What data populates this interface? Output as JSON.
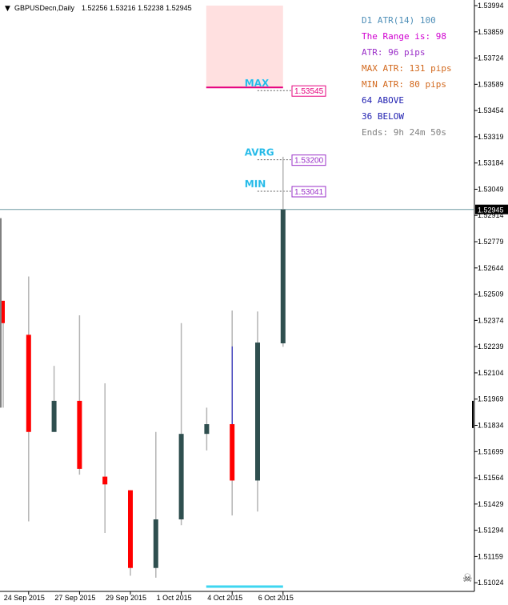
{
  "header": {
    "arrow": "▼",
    "symbol": "GBPUSDecn,Daily",
    "ohlc": "1.52256 1.53216 1.52238 1.52945"
  },
  "info_panel": [
    {
      "text": "D1 ATR(14) 100",
      "color": "#4f8fb8"
    },
    {
      "text": "The Range is: 98",
      "color": "#d000d0"
    },
    {
      "text": "ATR: 96 pips",
      "color": "#9a2fc8"
    },
    {
      "text": "MAX ATR: 131 pips",
      "color": "#d2691e"
    },
    {
      "text": "MIN ATR: 80 pips",
      "color": "#d2691e"
    },
    {
      "text": "64 ABOVE",
      "color": "#1f1fb0"
    },
    {
      "text": "36 BELOW",
      "color": "#1f1fb0"
    },
    {
      "text": "Ends: 9h 24m 50s",
      "color": "#808080"
    }
  ],
  "levels": [
    {
      "name": "MAX",
      "price": 1.53573,
      "label_box": "1.53545",
      "color": "#e6007e",
      "text_color": "#22b8e6",
      "line_color": "#e6007e"
    },
    {
      "name": "AVRG",
      "price": 1.53217,
      "label_box": "1.53200",
      "color": "#9a2fc8",
      "text_color": "#22b8e6",
      "line_color": "#606060"
    },
    {
      "name": "MIN",
      "price": 1.53055,
      "label_box": "1.53041",
      "color": "#9a2fc8",
      "text_color": "#22b8e6",
      "line_color": "#606060"
    }
  ],
  "current_price": {
    "label": "1.52945",
    "value": 1.52945,
    "color": "#6e9aa2"
  },
  "skull_icon": "☠",
  "chart_data": {
    "type": "candlestick",
    "y_range": [
      1.51,
      1.53994
    ],
    "price_axis_ticks": [
      "1.53994",
      "1.53859",
      "1.53724",
      "1.53589",
      "1.53454",
      "1.53319",
      "1.53184",
      "1.53049",
      "1.52914",
      "1.52779",
      "1.52644",
      "1.52509",
      "1.52374",
      "1.52239",
      "1.52104",
      "1.51969",
      "1.51834",
      "1.51699",
      "1.51564",
      "1.51429",
      "1.51294",
      "1.51159",
      "1.51024"
    ],
    "time_axis_labels": [
      "24 Sep 2015",
      "27 Sep 2015",
      "29 Sep 2015",
      "1 Oct 2015",
      "4 Oct 2015",
      "6 Oct 2015"
    ],
    "bull_color": "#2f4f4f",
    "bear_color": "#ff0000",
    "wick_color": "#b4b4b4",
    "candles": [
      {
        "open": 1.52475,
        "high": 1.52475,
        "low": 1.51925,
        "close": 1.5236
      },
      {
        "open": 1.523,
        "high": 1.526,
        "low": 1.5134,
        "close": 1.518
      },
      {
        "open": 1.518,
        "high": 1.5214,
        "low": 1.518,
        "close": 1.5196
      },
      {
        "open": 1.5196,
        "high": 1.524,
        "low": 1.5158,
        "close": 1.5161
      },
      {
        "open": 1.5157,
        "high": 1.5205,
        "low": 1.5128,
        "close": 1.5153
      },
      {
        "open": 1.515,
        "high": 1.515,
        "low": 1.5106,
        "close": 1.511
      },
      {
        "open": 1.511,
        "high": 1.518,
        "low": 1.5105,
        "close": 1.5135
      },
      {
        "open": 1.5135,
        "high": 1.5236,
        "low": 1.5132,
        "close": 1.5179
      },
      {
        "open": 1.5179,
        "high": 1.51925,
        "low": 1.51705,
        "close": 1.5184
      },
      {
        "open": 1.5184,
        "high": 1.52425,
        "low": 1.5137,
        "close": 1.5155
      },
      {
        "open": 1.5155,
        "high": 1.5242,
        "low": 1.5139,
        "close": 1.5226
      },
      {
        "open": 1.52256,
        "high": 1.53216,
        "low": 1.52238,
        "close": 1.52945
      }
    ],
    "range_box": {
      "top": 1.53994,
      "bottom": 1.53573,
      "color": "#ffe0e0"
    },
    "range_bar_color": "#3ed6f0"
  }
}
